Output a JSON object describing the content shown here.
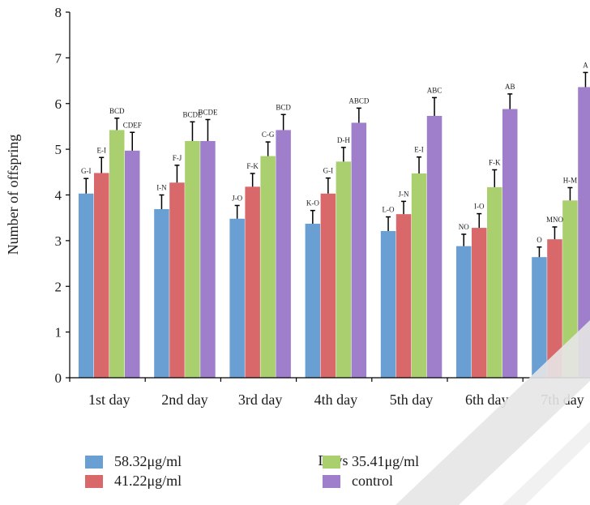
{
  "chart_data": {
    "type": "bar",
    "xlabel": "Days",
    "ylabel": "Number of offspring",
    "ylim": [
      0,
      8
    ],
    "yticks": [
      "0",
      "1",
      "2",
      "3",
      "4",
      "5",
      "6",
      "7",
      "8"
    ],
    "categories": [
      "1st day",
      "2nd day",
      "3rd day",
      "4th day",
      "5th day",
      "6th day",
      "7th day"
    ],
    "grid": false,
    "legend_position": "bottom",
    "series": [
      {
        "name": "58.32μg/ml",
        "color": "#6a9fd3",
        "values": [
          4.03,
          3.69,
          3.48,
          3.37,
          3.21,
          2.88,
          2.64
        ],
        "errors": [
          0.33,
          0.31,
          0.29,
          0.29,
          0.31,
          0.26,
          0.22
        ],
        "letters": [
          "G-I",
          "I-N",
          "J-O",
          "K-O",
          "L-O",
          "NO",
          "O"
        ]
      },
      {
        "name": "41.22μg/ml",
        "color": "#d9686a",
        "values": [
          4.48,
          4.27,
          4.18,
          4.03,
          3.58,
          3.28,
          3.03
        ],
        "errors": [
          0.34,
          0.38,
          0.29,
          0.34,
          0.28,
          0.31,
          0.27
        ],
        "letters": [
          "E-I",
          "F-J",
          "F-K",
          "G-I",
          "J-N",
          "I-O",
          "MNO"
        ]
      },
      {
        "name": "35.41μg/ml",
        "color": "#a9cf6f",
        "values": [
          5.42,
          5.18,
          4.85,
          4.73,
          4.47,
          4.17,
          3.88
        ],
        "errors": [
          0.26,
          0.42,
          0.31,
          0.31,
          0.36,
          0.38,
          0.28
        ],
        "letters": [
          "BCD",
          "BCDE",
          "C-G",
          "D-H",
          "E-I",
          "F-K",
          "H-M"
        ]
      },
      {
        "name": "control",
        "color": "#9f7fcb",
        "values": [
          4.97,
          5.18,
          5.42,
          5.58,
          5.73,
          5.88,
          6.36
        ],
        "errors": [
          0.4,
          0.47,
          0.34,
          0.32,
          0.4,
          0.33,
          0.32
        ],
        "letters": [
          "CDEF",
          "BCDE",
          "BCD",
          "ABCD",
          "ABC",
          "AB",
          "A"
        ]
      }
    ]
  }
}
